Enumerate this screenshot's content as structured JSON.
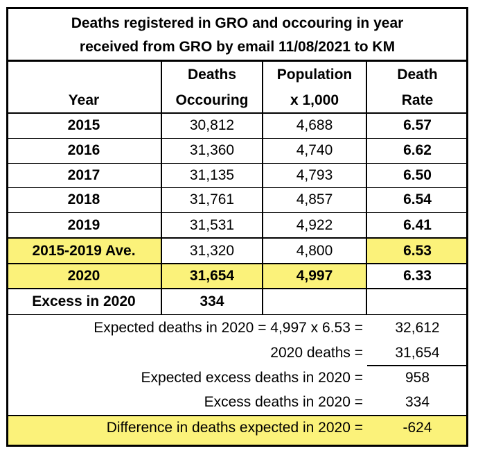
{
  "chart_data": {
    "type": "table",
    "title_line1": "Deaths registered in GRO and occouring in year",
    "title_line2": "received from GRO by email 11/08/2021 to KM",
    "headers": [
      {
        "line1": "",
        "line2": "Year"
      },
      {
        "line1": "Deaths",
        "line2": "Occouring"
      },
      {
        "line1": "Population",
        "line2": "x 1,000"
      },
      {
        "line1": "Death",
        "line2": "Rate"
      }
    ],
    "rows": [
      {
        "year": "2015",
        "deaths": "30,812",
        "population": "4,688",
        "rate": "6.57"
      },
      {
        "year": "2016",
        "deaths": "31,360",
        "population": "4,740",
        "rate": "6.62"
      },
      {
        "year": "2017",
        "deaths": "31,135",
        "population": "4,793",
        "rate": "6.50"
      },
      {
        "year": "2018",
        "deaths": "31,761",
        "population": "4,857",
        "rate": "6.54"
      },
      {
        "year": "2019",
        "deaths": "31,531",
        "population": "4,922",
        "rate": "6.41"
      },
      {
        "year": "2015-2019 Ave.",
        "deaths": "31,320",
        "population": "4,800",
        "rate": "6.53"
      },
      {
        "year": "2020",
        "deaths": "31,654",
        "population": "4,997",
        "rate": "6.33"
      },
      {
        "year": "Excess in 2020",
        "deaths": "334",
        "population": "",
        "rate": ""
      }
    ],
    "summary": [
      {
        "label": "Expected deaths in 2020 = 4,997 x 6.53 =",
        "value": "32,612"
      },
      {
        "label": "2020 deaths =",
        "value": "31,654"
      },
      {
        "label": "Expected excess deaths in 2020 =",
        "value": "958"
      },
      {
        "label": "Excess deaths in 2020 =",
        "value": "334"
      },
      {
        "label": "Difference in deaths expected in 2020 =",
        "value": "-624"
      }
    ],
    "highlight_color": "#fbf27a"
  }
}
